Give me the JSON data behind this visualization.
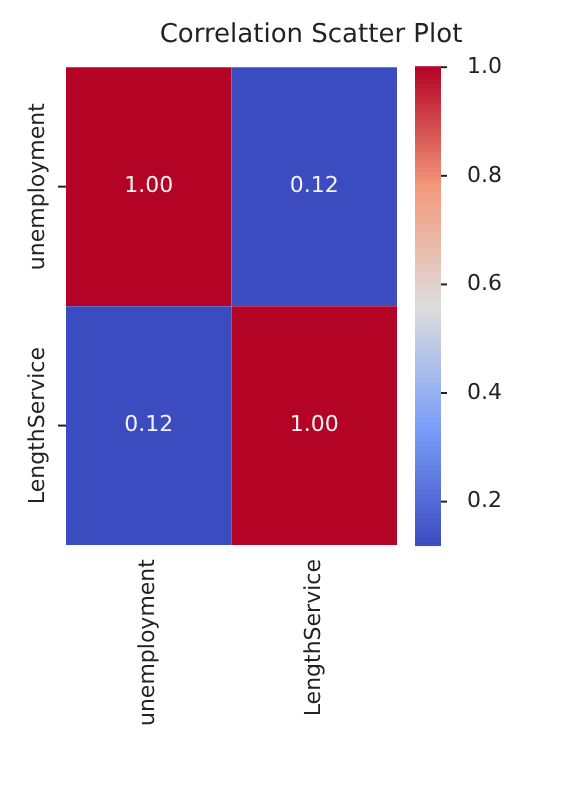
{
  "chart_data": {
    "type": "heatmap",
    "title": "Correlation Scatter Plot",
    "categories": [
      "unemployment",
      "LengthService"
    ],
    "y_categories": [
      "unemployment",
      "LengthService"
    ],
    "cells": [
      [
        1.0,
        0.12
      ],
      [
        0.12,
        1.0
      ]
    ],
    "cell_labels": [
      [
        "1.00",
        "0.12"
      ],
      [
        "0.12",
        "1.00"
      ]
    ],
    "clim": [
      0.12,
      1.0
    ],
    "cticks": [
      {
        "value": 0.2,
        "label": "0.2"
      },
      {
        "value": 0.4,
        "label": "0.4"
      },
      {
        "value": 0.6,
        "label": "0.6"
      },
      {
        "value": 0.8,
        "label": "0.8"
      },
      {
        "value": 1.0,
        "label": "1.0"
      }
    ]
  }
}
